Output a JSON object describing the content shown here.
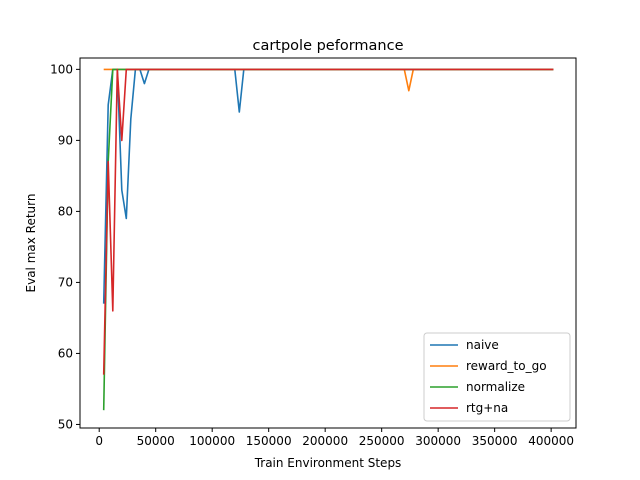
{
  "chart_data": {
    "type": "line",
    "title": "cartpole peformance",
    "xlabel": "Train Environment Steps",
    "ylabel": "Eval max Return",
    "xlim": [
      -17000,
      422000
    ],
    "ylim": [
      49.5,
      101.6
    ],
    "xticks": [
      0,
      50000,
      100000,
      150000,
      200000,
      250000,
      300000,
      350000,
      400000
    ],
    "yticks": [
      50,
      60,
      70,
      80,
      90,
      100
    ],
    "grid": false,
    "legend_position": "lower-right",
    "series": [
      {
        "name": "naive",
        "color": "#1f77b4",
        "x": [
          4000,
          8000,
          12000,
          16000,
          20000,
          24000,
          28000,
          32000,
          36000,
          40000,
          44000,
          48000,
          80000,
          120000,
          124000,
          128000,
          160000,
          200000,
          250000,
          300000,
          350000,
          402000
        ],
        "y": [
          67,
          95,
          100,
          100,
          83,
          79,
          93,
          100,
          100,
          98,
          100,
          100,
          100,
          100,
          94,
          100,
          100,
          100,
          100,
          100,
          100,
          100
        ]
      },
      {
        "name": "reward_to_go",
        "color": "#ff7f0e",
        "x": [
          4000,
          50000,
          100000,
          150000,
          200000,
          250000,
          270000,
          274000,
          278000,
          300000,
          350000,
          402000
        ],
        "y": [
          100,
          100,
          100,
          100,
          100,
          100,
          100,
          97,
          100,
          100,
          100,
          100
        ]
      },
      {
        "name": "normalize",
        "color": "#2ca02c",
        "x": [
          4000,
          8000,
          12000,
          16000,
          20000,
          50000,
          100000,
          150000,
          200000,
          250000,
          300000,
          350000,
          402000
        ],
        "y": [
          52,
          87,
          100,
          100,
          100,
          100,
          100,
          100,
          100,
          100,
          100,
          100,
          100
        ]
      },
      {
        "name": "rtg+na",
        "color": "#d62728",
        "x": [
          4000,
          8000,
          12000,
          16000,
          20000,
          24000,
          28000,
          50000,
          100000,
          150000,
          200000,
          250000,
          300000,
          350000,
          402000
        ],
        "y": [
          57,
          87,
          66,
          100,
          90,
          100,
          100,
          100,
          100,
          100,
          100,
          100,
          100,
          100,
          100
        ]
      }
    ]
  }
}
